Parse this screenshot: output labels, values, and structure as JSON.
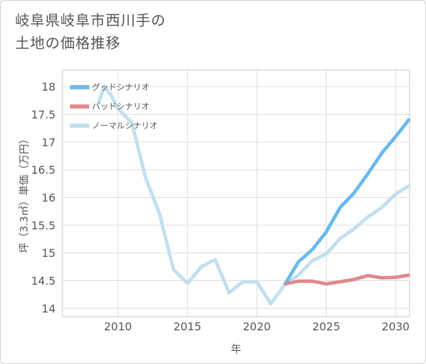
{
  "title": {
    "line1": "岐阜県岐阜市西川手の",
    "line2": "土地の価格推移"
  },
  "chart_data": {
    "type": "line",
    "xlabel": "年",
    "ylabel": "坪（3.3㎡）単価（万円）",
    "xlim": [
      2006,
      2031
    ],
    "ylim": [
      13.85,
      18.3
    ],
    "grid": true,
    "legend_position": "top-left",
    "x_ticks": [
      2010,
      2015,
      2020,
      2025,
      2030
    ],
    "y_ticks": [
      14,
      14.5,
      15,
      15.5,
      16,
      16.5,
      17,
      17.5,
      18
    ],
    "series": [
      {
        "name": "ノーマルシナリオ",
        "color": "#c1dfee",
        "points": [
          [
            2008.6,
            17.7
          ],
          [
            2009,
            18.0
          ],
          [
            2009.5,
            17.85
          ],
          [
            2010,
            17.6
          ],
          [
            2011,
            17.35
          ],
          [
            2012,
            16.35
          ],
          [
            2013,
            15.7
          ],
          [
            2014,
            14.7
          ],
          [
            2015,
            14.45
          ],
          [
            2016,
            14.75
          ],
          [
            2017,
            14.88
          ],
          [
            2018,
            14.28
          ],
          [
            2019,
            14.48
          ],
          [
            2020,
            14.48
          ],
          [
            2021,
            14.08
          ],
          [
            2022,
            14.42
          ],
          [
            2023,
            14.6
          ],
          [
            2024,
            14.86
          ],
          [
            2025,
            14.98
          ],
          [
            2026,
            15.26
          ],
          [
            2027,
            15.43
          ],
          [
            2028,
            15.65
          ],
          [
            2029,
            15.82
          ],
          [
            2030,
            16.06
          ],
          [
            2031,
            16.22
          ]
        ]
      },
      {
        "name": "グッドシナリオ",
        "color": "#6ab9ed",
        "points": [
          [
            2022,
            14.42
          ],
          [
            2023,
            14.84
          ],
          [
            2024,
            15.06
          ],
          [
            2025,
            15.38
          ],
          [
            2026,
            15.82
          ],
          [
            2027,
            16.08
          ],
          [
            2028,
            16.43
          ],
          [
            2029,
            16.8
          ],
          [
            2030,
            17.1
          ],
          [
            2031,
            17.42
          ]
        ]
      },
      {
        "name": "バッドシナリオ",
        "color": "#e0888e",
        "points": [
          [
            2022,
            14.44
          ],
          [
            2023,
            14.49
          ],
          [
            2024,
            14.49
          ],
          [
            2025,
            14.44
          ],
          [
            2026,
            14.48
          ],
          [
            2027,
            14.52
          ],
          [
            2028,
            14.59
          ],
          [
            2029,
            14.55
          ],
          [
            2030,
            14.56
          ],
          [
            2031,
            14.6
          ]
        ]
      }
    ],
    "legend": [
      {
        "label": "グッドシナリオ",
        "color": "#6ab9ed"
      },
      {
        "label": "バッドシナリオ",
        "color": "#e0888e"
      },
      {
        "label": "ノーマルシナリオ",
        "color": "#c1dfee"
      }
    ]
  }
}
